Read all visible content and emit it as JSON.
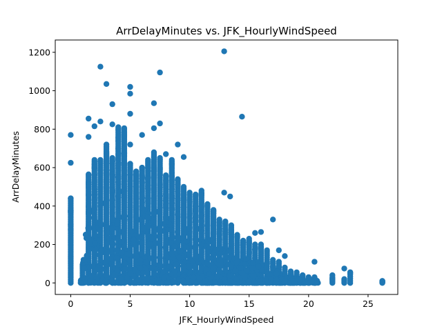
{
  "chart_data": {
    "type": "scatter",
    "title": "ArrDelayMinutes vs. JFK_HourlyWindSpeed",
    "xlabel": "JFK_HourlyWindSpeed",
    "ylabel": "ArrDelayMinutes",
    "xlim": [
      -1.3,
      27.5
    ],
    "ylim": [
      -60,
      1264
    ],
    "xticks": [
      0,
      5,
      10,
      15,
      20,
      25
    ],
    "yticks": [
      0,
      200,
      400,
      600,
      800,
      1000,
      1200
    ],
    "grid": false,
    "legend": "none",
    "marker_color": "#1f77b4",
    "x_levels": [
      0,
      1,
      1.5,
      2,
      2.5,
      3,
      3.5,
      4,
      4.5,
      5,
      5.5,
      6,
      6.5,
      7,
      7.5,
      8,
      8.5,
      9,
      9.5,
      10,
      10.5,
      11,
      11.5,
      12,
      12.5,
      13,
      13.5,
      14,
      14.5,
      15,
      15.5,
      16,
      16.5,
      17,
      17.5,
      18,
      18.5,
      19,
      19.5,
      20,
      20.5,
      22,
      23,
      23.5,
      26.2
    ],
    "dense_band_top": [
      440,
      95,
      565,
      640,
      640,
      720,
      650,
      810,
      800,
      620,
      580,
      600,
      640,
      680,
      650,
      560,
      640,
      540,
      500,
      470,
      460,
      480,
      410,
      380,
      330,
      320,
      300,
      250,
      220,
      230,
      200,
      200,
      170,
      120,
      110,
      80,
      60,
      45,
      40,
      30,
      30,
      30,
      20,
      55,
      10
    ],
    "outliers": [
      {
        "x": 0,
        "y": 770
      },
      {
        "x": 0,
        "y": 625
      },
      {
        "x": 1.5,
        "y": 855
      },
      {
        "x": 1.5,
        "y": 760
      },
      {
        "x": 2,
        "y": 815
      },
      {
        "x": 2.5,
        "y": 1125
      },
      {
        "x": 2.5,
        "y": 840
      },
      {
        "x": 3,
        "y": 1035
      },
      {
        "x": 3.5,
        "y": 930
      },
      {
        "x": 3.5,
        "y": 825
      },
      {
        "x": 4,
        "y": 800
      },
      {
        "x": 4.5,
        "y": 805
      },
      {
        "x": 4.5,
        "y": 775
      },
      {
        "x": 5,
        "y": 1020
      },
      {
        "x": 5,
        "y": 985
      },
      {
        "x": 5,
        "y": 880
      },
      {
        "x": 5,
        "y": 720
      },
      {
        "x": 6,
        "y": 770
      },
      {
        "x": 7,
        "y": 935
      },
      {
        "x": 7,
        "y": 805
      },
      {
        "x": 7.5,
        "y": 1095
      },
      {
        "x": 7.5,
        "y": 830
      },
      {
        "x": 8,
        "y": 670
      },
      {
        "x": 9,
        "y": 720
      },
      {
        "x": 9.5,
        "y": 655
      },
      {
        "x": 12.9,
        "y": 1205
      },
      {
        "x": 12.9,
        "y": 470
      },
      {
        "x": 13.4,
        "y": 450
      },
      {
        "x": 14.4,
        "y": 865
      },
      {
        "x": 17,
        "y": 330
      },
      {
        "x": 15.5,
        "y": 260
      },
      {
        "x": 16,
        "y": 265
      },
      {
        "x": 17.5,
        "y": 170
      },
      {
        "x": 18,
        "y": 140
      },
      {
        "x": 19,
        "y": 55
      },
      {
        "x": 20.5,
        "y": 110
      },
      {
        "x": 22,
        "y": 40
      },
      {
        "x": 23,
        "y": 75
      },
      {
        "x": 23.5,
        "y": 55
      },
      {
        "x": 26.2,
        "y": 10
      },
      {
        "x": 26.2,
        "y": 2
      }
    ]
  }
}
